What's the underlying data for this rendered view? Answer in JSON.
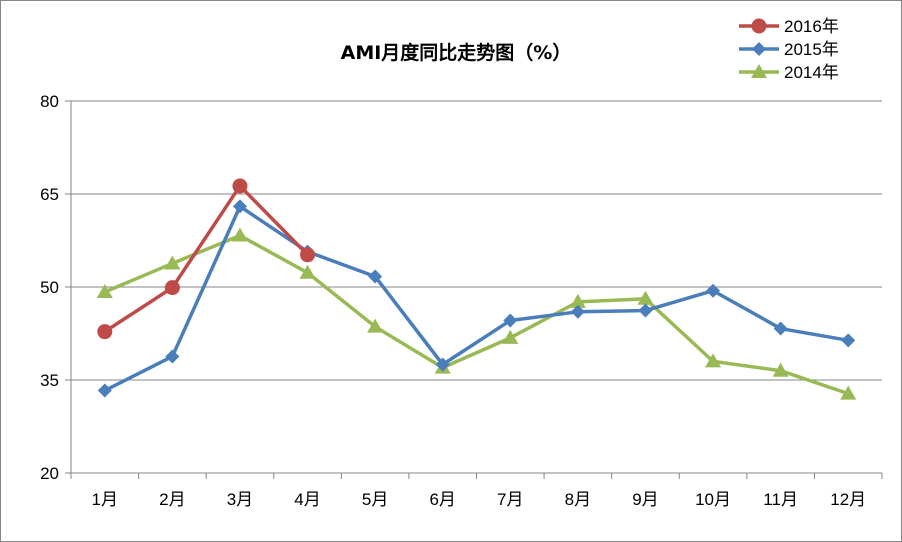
{
  "chart_data": {
    "type": "line",
    "title": "AMI月度同比走势图（%）",
    "xlabel": "",
    "ylabel": "",
    "categories": [
      "1月",
      "2月",
      "3月",
      "4月",
      "5月",
      "6月",
      "7月",
      "8月",
      "9月",
      "10月",
      "11月",
      "12月"
    ],
    "ylim": [
      20,
      80
    ],
    "yticks": [
      20,
      35,
      50,
      65,
      80
    ],
    "grid": true,
    "legend_position": "top-right",
    "series": [
      {
        "name": "2016年",
        "color": "#BE4B48",
        "marker": "circle",
        "values": [
          42.8,
          49.9,
          66.3,
          55.2,
          null,
          null,
          null,
          null,
          null,
          null,
          null,
          null
        ]
      },
      {
        "name": "2015年",
        "color": "#4A7EBB",
        "marker": "diamond",
        "values": [
          33.3,
          38.8,
          63.0,
          55.7,
          51.7,
          37.5,
          44.6,
          46.0,
          46.2,
          49.4,
          43.3,
          41.4
        ]
      },
      {
        "name": "2014年",
        "color": "#98B954",
        "marker": "triangle",
        "values": [
          49.2,
          53.8,
          58.3,
          52.3,
          43.6,
          37.0,
          41.8,
          47.6,
          48.1,
          38.0,
          36.5,
          32.8
        ]
      }
    ]
  }
}
